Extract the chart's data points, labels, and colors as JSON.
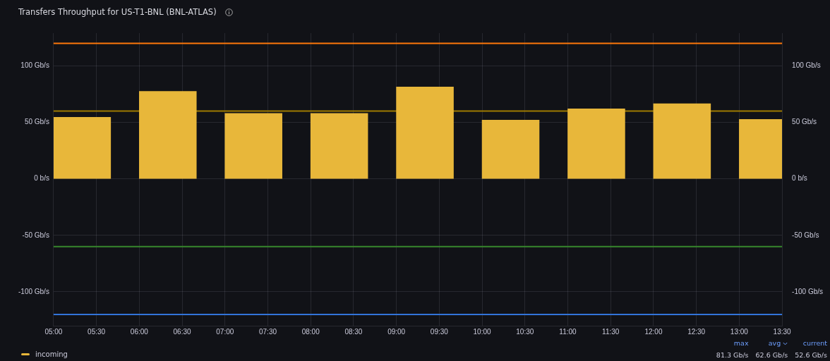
{
  "chart_data": {
    "type": "bar",
    "title": "Transfers Throughput for US-T1-BNL (BNL-ATLAS)",
    "x": [
      5.333,
      6.333,
      7.333,
      8.333,
      9.333,
      10.333,
      11.333,
      12.333,
      13.333
    ],
    "series": [
      {
        "name": "incoming",
        "color": "#e8b73a",
        "values": [
          54.5,
          77.5,
          58,
          58,
          81.3,
          52,
          62,
          66.5,
          52.6
        ]
      }
    ],
    "xlim": [
      5,
      13.5
    ],
    "xticks": [
      {
        "value": 5,
        "label": "05:00"
      },
      {
        "value": 5.5,
        "label": "05:30"
      },
      {
        "value": 6,
        "label": "06:00"
      },
      {
        "value": 6.5,
        "label": "06:30"
      },
      {
        "value": 7,
        "label": "07:00"
      },
      {
        "value": 7.5,
        "label": "07:30"
      },
      {
        "value": 8,
        "label": "08:00"
      },
      {
        "value": 8.5,
        "label": "08:30"
      },
      {
        "value": 9,
        "label": "09:00"
      },
      {
        "value": 9.5,
        "label": "09:30"
      },
      {
        "value": 10,
        "label": "10:00"
      },
      {
        "value": 10.5,
        "label": "10:30"
      },
      {
        "value": 11,
        "label": "11:00"
      },
      {
        "value": 11.5,
        "label": "11:30"
      },
      {
        "value": 12,
        "label": "12:00"
      },
      {
        "value": 12.5,
        "label": "12:30"
      },
      {
        "value": 13,
        "label": "13:00"
      },
      {
        "value": 13.5,
        "label": "13:30"
      }
    ],
    "ylim": [
      -130,
      129
    ],
    "yticks": [
      {
        "value": -100,
        "label": "-100 Gb/s"
      },
      {
        "value": -50,
        "label": "-50 Gb/s"
      },
      {
        "value": 0,
        "label": "0 b/s"
      },
      {
        "value": 50,
        "label": "50 Gb/s"
      },
      {
        "value": 100,
        "label": "100 Gb/s"
      }
    ],
    "y2lim": [
      -130,
      129
    ],
    "y2ticks": [
      {
        "value": -100,
        "label": "-100 Gb/s"
      },
      {
        "value": -50,
        "label": "-50 Gb/s"
      },
      {
        "value": 0,
        "label": "0 b/s"
      },
      {
        "value": 50,
        "label": "50 Gb/s"
      },
      {
        "value": 100,
        "label": "100 Gb/s"
      }
    ],
    "ref_lines": [
      {
        "axis": "y",
        "value": 120,
        "color": "#ff780a"
      },
      {
        "axis": "y",
        "value": 60,
        "color": "#9e7a00"
      },
      {
        "axis": "y",
        "value": -60,
        "color": "#37872d"
      },
      {
        "axis": "y",
        "value": -120,
        "color": "#3274d9"
      }
    ],
    "annotations": [
      "max",
      "81.3 Gb/s",
      "avg",
      "62.6 Gb/s",
      "current",
      "52.6 Gb/s"
    ],
    "grid": true,
    "legend": "bottom left"
  }
}
